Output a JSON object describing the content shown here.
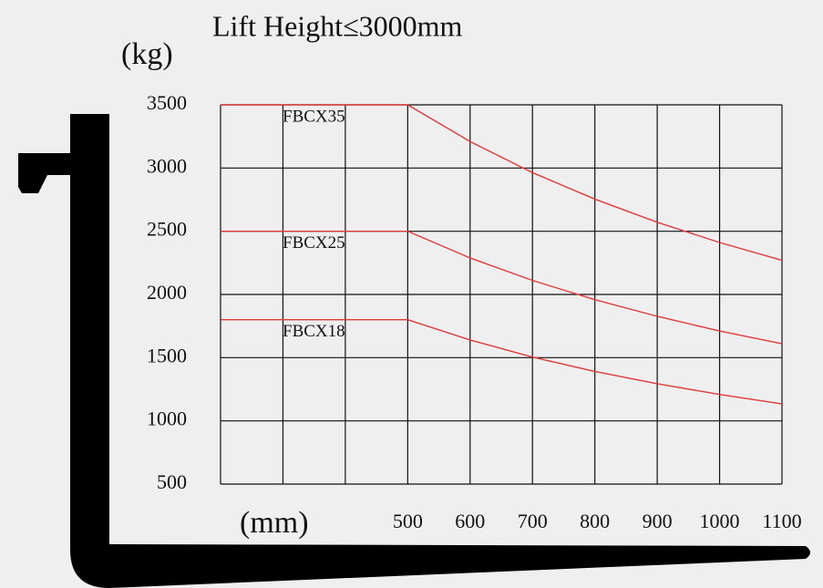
{
  "chart_data": {
    "type": "line",
    "title": "Lift Height≤3000mm",
    "ylabel": "(kg)",
    "xlabel": "(mm)",
    "x": [
      200,
      500,
      600,
      700,
      800,
      900,
      1000,
      1100
    ],
    "series": [
      {
        "name": "FBCX35",
        "color": "#e03a3a",
        "values": [
          3500,
          3500,
          3210,
          2964,
          2754,
          2571,
          2411,
          2270
        ]
      },
      {
        "name": "FBCX25",
        "color": "#e03a3a",
        "values": [
          2500,
          2500,
          2289,
          2111,
          1959,
          1827,
          1711,
          1610
        ]
      },
      {
        "name": "FBCX18",
        "color": "#e03a3a",
        "values": [
          1800,
          1800,
          1640,
          1505,
          1391,
          1294,
          1209,
          1134
        ]
      }
    ],
    "xlim": [
      200,
      1100
    ],
    "ylim": [
      500,
      3500
    ],
    "xticks": [
      500,
      600,
      700,
      800,
      900,
      1000,
      1100
    ],
    "xgrid": [
      200,
      300,
      400,
      500,
      600,
      700,
      800,
      900,
      1000,
      1100
    ],
    "yticks": [
      500,
      1000,
      1500,
      2000,
      2500,
      3000,
      3500
    ],
    "grid": true
  }
}
